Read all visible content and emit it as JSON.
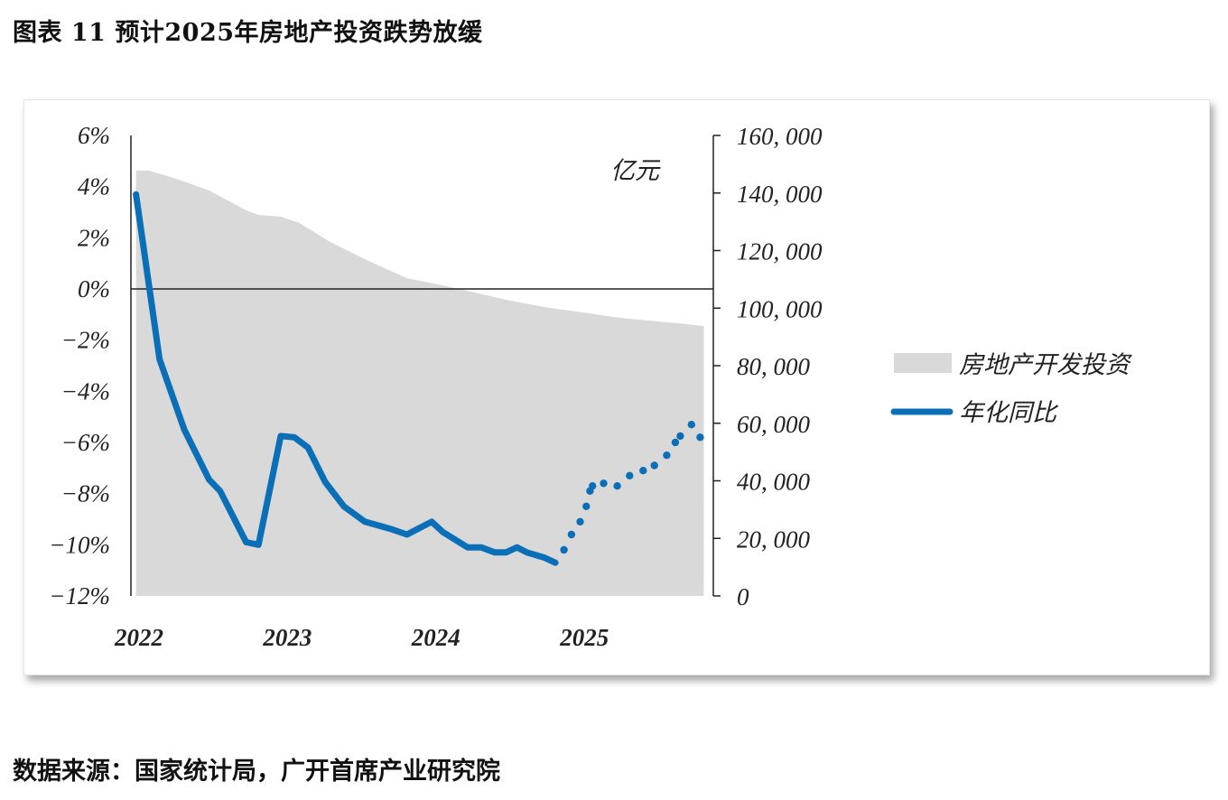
{
  "title": "图表 11 预计2025年房地产投资跌势放缓",
  "source": "数据来源：国家统计局，广开首席产业研究院",
  "chart_data": {
    "type": "area+line",
    "title": "预计2025年房地产投资跌势放缓",
    "x_unit": "months since Jan 2022",
    "x_ticks": [
      {
        "label": "2022",
        "m": 0
      },
      {
        "label": "2023",
        "m": 12
      },
      {
        "label": "2024",
        "m": 24
      },
      {
        "label": "2025",
        "m": 36
      }
    ],
    "left_axis": {
      "ylim": [
        -12,
        6
      ],
      "ticks": [
        6,
        4,
        2,
        0,
        -2,
        -4,
        -6,
        -8,
        -10,
        -12
      ],
      "labels": [
        "6%",
        "4%",
        "2%",
        "0%",
        "−2%",
        "−4%",
        "−6%",
        "−8%",
        "−10%",
        "−12%"
      ]
    },
    "right_axis": {
      "ylim": [
        0,
        160000
      ],
      "unit_label": "亿元",
      "ticks": [
        160000,
        140000,
        120000,
        100000,
        80000,
        60000,
        40000,
        20000,
        0
      ],
      "labels": [
        "160, 000",
        "140, 000",
        "120, 000",
        "100, 000",
        "80, 000",
        "60, 000",
        "40, 000",
        "20, 000",
        "0"
      ]
    },
    "legend": [
      {
        "name": "房地产开发投资",
        "color": "#d9d9d9",
        "kind": "area"
      },
      {
        "name": "年化同比",
        "color": "#0b6fb8",
        "kind": "line"
      }
    ],
    "legend_placement": "right",
    "series": [
      {
        "name": "房地产开发投资",
        "axis": "right",
        "type": "area",
        "color": "#d9d9d9",
        "points": [
          [
            -0.1,
            147800
          ],
          [
            0.9,
            147800
          ],
          [
            3.0,
            145200
          ],
          [
            5.8,
            140900
          ],
          [
            8.8,
            134000
          ],
          [
            9.8,
            132400
          ],
          [
            11.6,
            131800
          ],
          [
            13.1,
            129600
          ],
          [
            15.6,
            123000
          ],
          [
            18.7,
            116400
          ],
          [
            21.8,
            110400
          ],
          [
            23.6,
            108900
          ],
          [
            26.7,
            106000
          ],
          [
            29.8,
            102900
          ],
          [
            32.9,
            100400
          ],
          [
            36.0,
            98500
          ],
          [
            39.1,
            96600
          ],
          [
            43.1,
            95000
          ],
          [
            45.2,
            94100
          ],
          [
            45.8,
            93800
          ]
        ]
      },
      {
        "name": "年化同比",
        "axis": "left",
        "type": "line",
        "style": "solid",
        "color": "#0b6fb8",
        "points": [
          [
            -0.1,
            3.7
          ],
          [
            1.8,
            -2.75
          ],
          [
            3.8,
            -5.5
          ],
          [
            5.8,
            -7.45
          ],
          [
            6.7,
            -7.9
          ],
          [
            8.8,
            -9.9
          ],
          [
            9.8,
            -10.0
          ],
          [
            11.6,
            -5.75
          ],
          [
            12.7,
            -5.8
          ],
          [
            13.8,
            -6.2
          ],
          [
            15.2,
            -7.55
          ],
          [
            16.7,
            -8.5
          ],
          [
            18.4,
            -9.1
          ],
          [
            20.6,
            -9.4
          ],
          [
            21.8,
            -9.6
          ],
          [
            23.8,
            -9.1
          ],
          [
            24.7,
            -9.5
          ],
          [
            26.7,
            -10.1
          ],
          [
            27.8,
            -10.1
          ],
          [
            28.9,
            -10.3
          ],
          [
            29.8,
            -10.3
          ],
          [
            30.7,
            -10.1
          ],
          [
            31.5,
            -10.3
          ],
          [
            32.9,
            -10.5
          ],
          [
            33.8,
            -10.7
          ]
        ]
      },
      {
        "name": "年化同比（预测）",
        "axis": "left",
        "type": "line",
        "style": "dotted",
        "color": "#0b6fb8",
        "points": [
          [
            34.5,
            -10.2
          ],
          [
            35.1,
            -9.6
          ],
          [
            35.8,
            -9.1
          ],
          [
            36.3,
            -8.5
          ],
          [
            36.6,
            -7.9
          ],
          [
            36.8,
            -7.7
          ],
          [
            37.7,
            -7.6
          ],
          [
            38.8,
            -7.7
          ],
          [
            39.8,
            -7.3
          ],
          [
            40.9,
            -7.1
          ],
          [
            41.8,
            -6.9
          ],
          [
            42.8,
            -6.5
          ],
          [
            43.5,
            -6.0
          ],
          [
            43.9,
            -5.75
          ],
          [
            44.8,
            -5.3
          ],
          [
            45.5,
            -5.8
          ]
        ]
      }
    ]
  }
}
